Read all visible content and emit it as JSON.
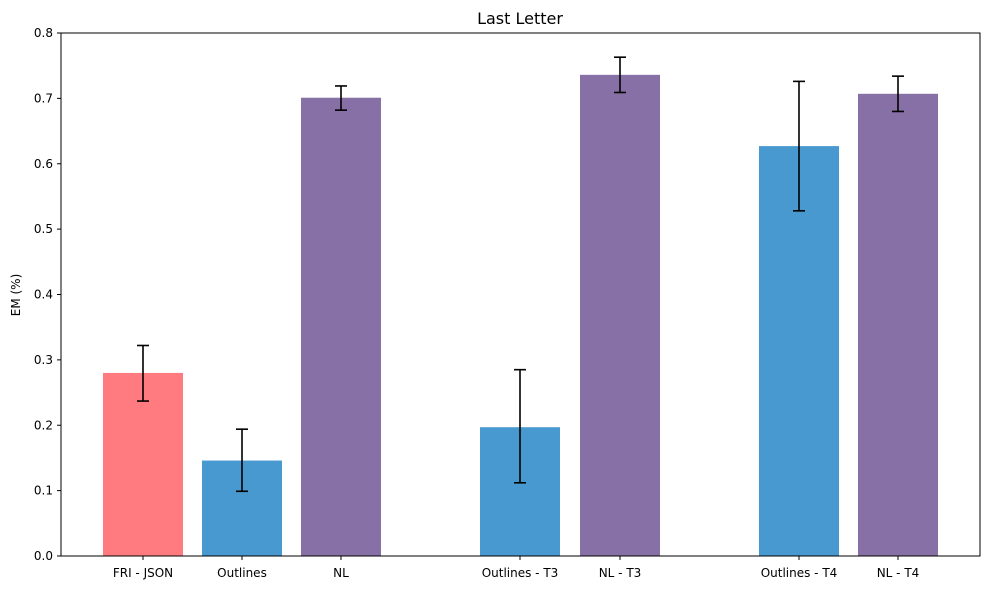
{
  "chart_data": {
    "type": "bar",
    "title": "Last Letter",
    "xlabel": "",
    "ylabel": "EM (%)",
    "ylim": [
      0,
      0.8
    ],
    "yticks": [
      "0.0",
      "0.1",
      "0.2",
      "0.3",
      "0.4",
      "0.5",
      "0.6",
      "0.7",
      "0.8"
    ],
    "grid": false,
    "bars": [
      {
        "label": "FRI - JSON",
        "value": 0.28,
        "err_low": 0.237,
        "err_high": 0.322,
        "color": "#ff7b7f"
      },
      {
        "label": "Outlines",
        "value": 0.146,
        "err_low": 0.099,
        "err_high": 0.194,
        "color": "#4899cf"
      },
      {
        "label": "NL",
        "value": 0.701,
        "err_low": 0.682,
        "err_high": 0.719,
        "color": "#8770a6"
      },
      {
        "label": "Outlines - T3",
        "value": 0.197,
        "err_low": 0.112,
        "err_high": 0.285,
        "color": "#4899cf"
      },
      {
        "label": "NL - T3",
        "value": 0.736,
        "err_low": 0.709,
        "err_high": 0.763,
        "color": "#8770a6"
      },
      {
        "label": "Outlines - T4",
        "value": 0.627,
        "err_low": 0.528,
        "err_high": 0.726,
        "color": "#4899cf"
      },
      {
        "label": "NL - T4",
        "value": 0.707,
        "err_low": 0.68,
        "err_high": 0.734,
        "color": "#8770a6"
      }
    ]
  }
}
